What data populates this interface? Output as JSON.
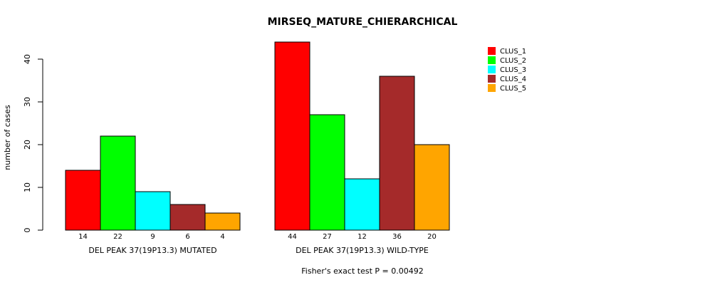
{
  "chart_data": {
    "type": "bar",
    "title": "MIRSEQ_MATURE_CHIERARCHICAL",
    "ylabel": "number of cases",
    "ylim": [
      0,
      40
    ],
    "yticks": [
      0,
      10,
      20,
      30,
      40
    ],
    "groups": [
      {
        "label": "DEL PEAK 37(19P13.3) MUTATED",
        "values": [
          14,
          22,
          9,
          6,
          4
        ]
      },
      {
        "label": "DEL PEAK 37(19P13.3) WILD-TYPE",
        "values": [
          44,
          27,
          12,
          36,
          20
        ]
      }
    ],
    "series": [
      {
        "name": "CLUS_1",
        "color": "#ff0000"
      },
      {
        "name": "CLUS_2",
        "color": "#00ff00"
      },
      {
        "name": "CLUS_3",
        "color": "#00ffff"
      },
      {
        "name": "CLUS_4",
        "color": "#a52a2a"
      },
      {
        "name": "CLUS_5",
        "color": "#ffa500"
      }
    ],
    "legend_position": "top-right",
    "grid": false,
    "footnote": "Fisher's exact test P = 0.00492"
  }
}
